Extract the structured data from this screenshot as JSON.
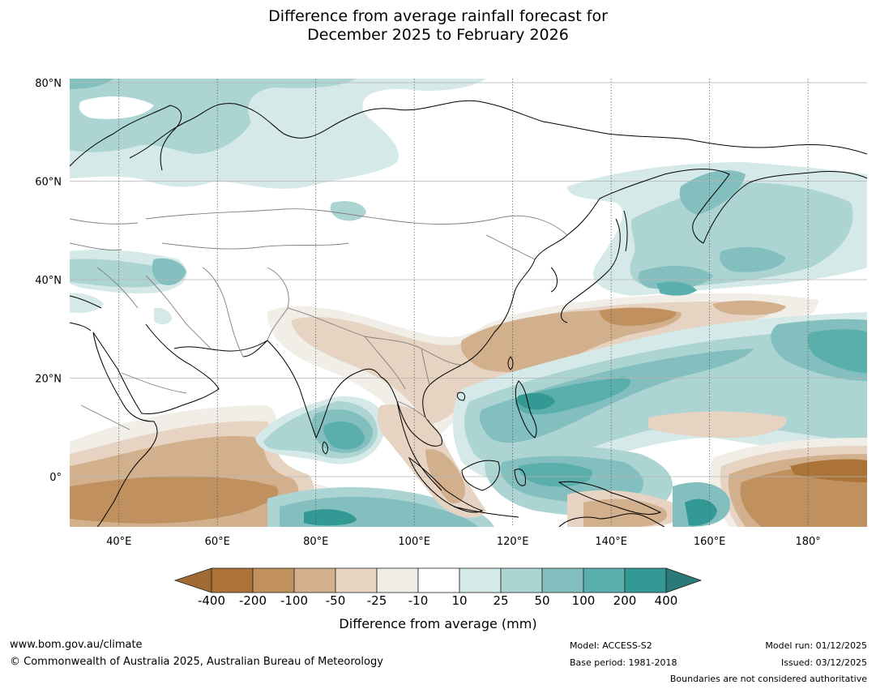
{
  "title": {
    "line1": "Difference from average rainfall forecast for",
    "line2": "December 2025 to February 2026"
  },
  "map": {
    "lat_labels": [
      "80°N",
      "60°N",
      "40°N",
      "20°N",
      "0°"
    ],
    "lon_labels": [
      "40°E",
      "60°E",
      "80°E",
      "100°E",
      "120°E",
      "140°E",
      "160°E",
      "180°"
    ],
    "lat_values": [
      80,
      60,
      40,
      20,
      0
    ],
    "lon_values": [
      40,
      60,
      80,
      100,
      120,
      140,
      160,
      180
    ],
    "lon_range": [
      30,
      192
    ],
    "lat_range": [
      -10,
      81
    ]
  },
  "colorbar": {
    "title": "Difference from average (mm)",
    "labels": [
      "-400",
      "-200",
      "-100",
      "-50",
      "-25",
      "-10",
      "10",
      "25",
      "50",
      "100",
      "200",
      "400"
    ],
    "colors": [
      "#ab7338",
      "#c0905f",
      "#d2b08d",
      "#e6d3c1",
      "#f1ede7",
      "#ffffff",
      "#d5e9e8",
      "#acd4d3",
      "#82bfbe",
      "#5aaeac",
      "#339995"
    ],
    "under_color": "#a06a31",
    "over_color": "#2b7a78"
  },
  "footer": {
    "url": "www.bom.gov.au/climate",
    "copyright": "© Commonwealth of Australia 2025, Australian Bureau of Meteorology",
    "model": "Model: ACCESS-S2",
    "base_period": "Base period: 1981-2018",
    "model_run": "Model run: 01/12/2025",
    "issued": "Issued: 03/12/2025",
    "disclaimer": "Boundaries are not considered authoritative"
  }
}
